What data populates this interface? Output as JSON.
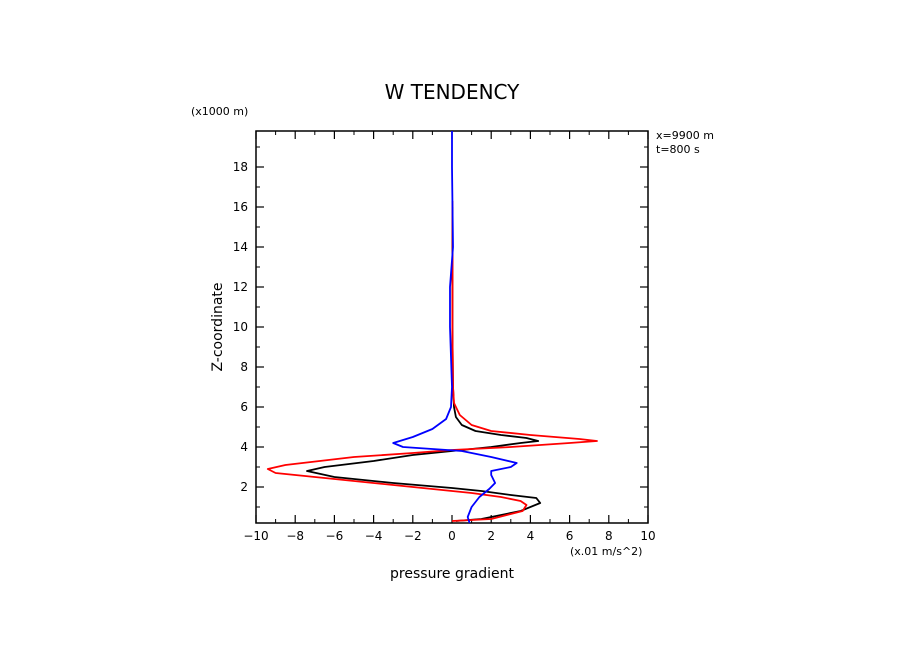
{
  "chart_data": {
    "type": "line",
    "title": "W TENDENCY",
    "xlabel": "pressure gradient",
    "ylabel": "Z-coordinate",
    "x_unit": "(x.01 m/s^2)",
    "y_unit": "(x1000 m)",
    "annotations": [
      "x=9900 m",
      "t=800 s"
    ],
    "xlim": [
      -10,
      10
    ],
    "ylim": [
      0.2,
      19.8
    ],
    "xticks": [
      -10,
      -8,
      -6,
      -4,
      -2,
      0,
      2,
      4,
      6,
      8,
      10
    ],
    "yticks": [
      2,
      4,
      6,
      8,
      10,
      12,
      14,
      16,
      18
    ],
    "grid": false,
    "series": [
      {
        "color": "#000000",
        "points": [
          [
            0.2,
            0.3
          ],
          [
            1.5,
            0.4
          ],
          [
            3.5,
            0.8
          ],
          [
            4.5,
            1.2
          ],
          [
            4.3,
            1.45
          ],
          [
            3.0,
            1.6
          ],
          [
            1.5,
            1.8
          ],
          [
            0.0,
            1.95
          ],
          [
            -3.0,
            2.2
          ],
          [
            -6.0,
            2.5
          ],
          [
            -7.4,
            2.8
          ],
          [
            -6.5,
            3.0
          ],
          [
            -4.0,
            3.3
          ],
          [
            -2.0,
            3.6
          ],
          [
            0.0,
            3.8
          ],
          [
            2.0,
            4.0
          ],
          [
            3.5,
            4.2
          ],
          [
            4.4,
            4.3
          ],
          [
            3.8,
            4.45
          ],
          [
            2.5,
            4.6
          ],
          [
            1.2,
            4.8
          ],
          [
            0.5,
            5.1
          ],
          [
            0.2,
            5.5
          ],
          [
            0.1,
            6.0
          ],
          [
            0.05,
            7.0
          ],
          [
            0.02,
            10.0
          ],
          [
            0.02,
            16.0
          ]
        ]
      },
      {
        "color": "#ff0000",
        "points": [
          [
            0.0,
            0.3
          ],
          [
            2.0,
            0.4
          ],
          [
            3.6,
            0.8
          ],
          [
            3.8,
            1.1
          ],
          [
            3.5,
            1.3
          ],
          [
            2.5,
            1.5
          ],
          [
            1.0,
            1.7
          ],
          [
            -2.0,
            2.0
          ],
          [
            -6.0,
            2.4
          ],
          [
            -9.0,
            2.7
          ],
          [
            -9.4,
            2.9
          ],
          [
            -8.5,
            3.1
          ],
          [
            -5.0,
            3.5
          ],
          [
            -2.0,
            3.7
          ],
          [
            0.0,
            3.85
          ],
          [
            3.0,
            4.0
          ],
          [
            6.0,
            4.2
          ],
          [
            7.4,
            4.3
          ],
          [
            6.5,
            4.4
          ],
          [
            4.0,
            4.6
          ],
          [
            2.0,
            4.8
          ],
          [
            1.0,
            5.1
          ],
          [
            0.4,
            5.6
          ],
          [
            0.1,
            6.2
          ],
          [
            0.05,
            7.0
          ],
          [
            0.02,
            10.0
          ],
          [
            0.03,
            14.0
          ],
          [
            0.02,
            16.3
          ]
        ]
      },
      {
        "color": "#0000ff",
        "points": [
          [
            0.9,
            0.2
          ],
          [
            0.8,
            0.5
          ],
          [
            1.0,
            1.0
          ],
          [
            1.4,
            1.5
          ],
          [
            1.9,
            1.9
          ],
          [
            2.2,
            2.2
          ],
          [
            2.0,
            2.6
          ],
          [
            2.0,
            2.8
          ],
          [
            3.0,
            3.0
          ],
          [
            3.3,
            3.2
          ],
          [
            2.0,
            3.5
          ],
          [
            0.5,
            3.8
          ],
          [
            -2.5,
            4.0
          ],
          [
            -3.0,
            4.2
          ],
          [
            -2.0,
            4.5
          ],
          [
            -1.0,
            4.9
          ],
          [
            -0.3,
            5.4
          ],
          [
            -0.05,
            6.0
          ],
          [
            0.0,
            7.0
          ],
          [
            -0.1,
            10.0
          ],
          [
            -0.1,
            12.0
          ],
          [
            0.05,
            14.0
          ],
          [
            0.0,
            18.0
          ],
          [
            0.0,
            19.8
          ]
        ]
      }
    ]
  }
}
